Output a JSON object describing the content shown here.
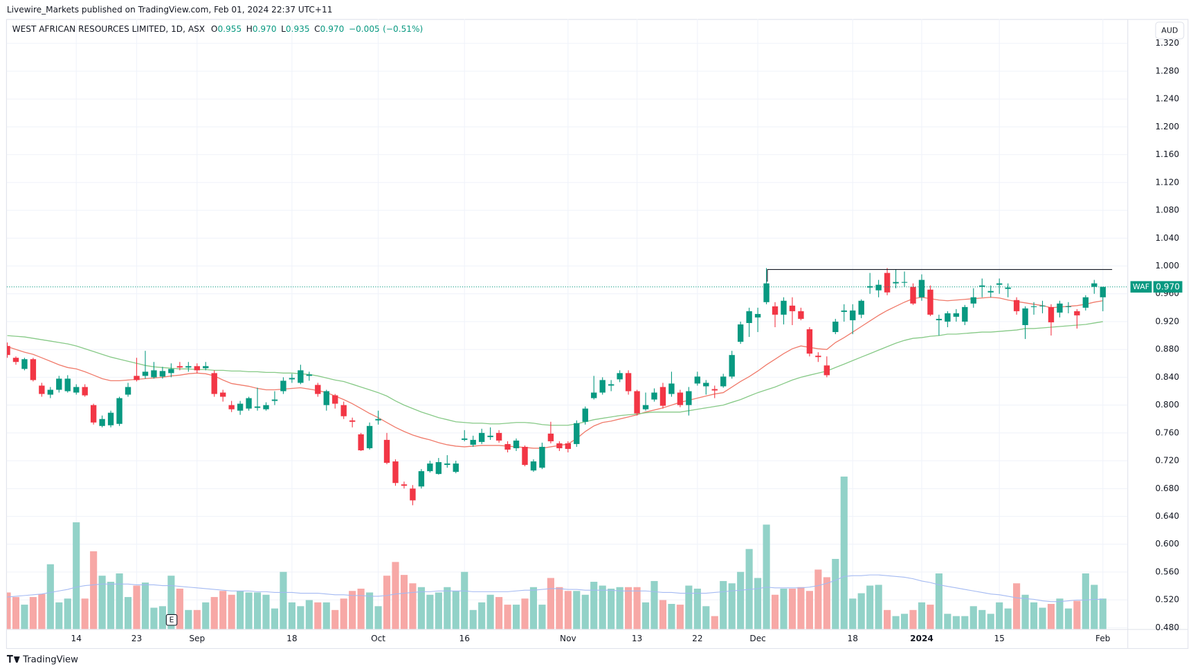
{
  "chart_data": {
    "type": "candlestick",
    "published": "Livewire_Markets published on TradingView.com, Feb 01, 2024 22:37 UTC+11",
    "legend": {
      "symbol": "WEST AFRICAN RESOURCES LIMITED, 1D, ASX",
      "fields": [
        {
          "key": "O",
          "value": "0.955"
        },
        {
          "key": "H",
          "value": "0.970"
        },
        {
          "key": "L",
          "value": "0.935"
        },
        {
          "key": "C",
          "value": "0.970"
        }
      ],
      "change": "−0.005",
      "change_pct": "(−0.51%)"
    },
    "currency": "AUD",
    "ticker": "WAF",
    "last_price": {
      "value": 0.97,
      "label": "0.970"
    },
    "earnings_marker": "E",
    "footer": "TradingView",
    "resistance": 0.995,
    "up_color": "#089981",
    "down_color": "#f23645",
    "volume_up_color": "#92d2c8",
    "volume_down_color": "#f7a8a6",
    "volume_ma_color": "#a3b9f2",
    "categories": [
      null,
      null,
      null,
      null,
      null,
      null,
      null,
      null,
      "14",
      null,
      null,
      null,
      null,
      null,
      null,
      "23",
      null,
      null,
      null,
      null,
      null,
      null,
      "Sep",
      null,
      null,
      null,
      null,
      null,
      null,
      null,
      null,
      null,
      null,
      "18",
      null,
      null,
      null,
      null,
      null,
      null,
      null,
      null,
      null,
      "Oct",
      null,
      null,
      null,
      null,
      null,
      null,
      null,
      null,
      null,
      "16",
      null,
      null,
      null,
      null,
      null,
      null,
      null,
      null,
      null,
      null,
      null,
      "Nov",
      null,
      null,
      null,
      null,
      null,
      null,
      null,
      "13",
      null,
      null,
      null,
      null,
      null,
      null,
      "22",
      null,
      null,
      null,
      null,
      null,
      null,
      "Dec",
      null,
      null,
      null,
      null,
      null,
      null,
      null,
      null,
      null,
      null,
      "18",
      null,
      null,
      null,
      null,
      null,
      null,
      null,
      "2024",
      null,
      null,
      null,
      null,
      null,
      null,
      null,
      null,
      "15",
      null,
      null,
      null,
      null,
      null,
      null,
      null,
      null,
      null,
      null,
      null,
      "Feb"
    ],
    "open": [
      0.885,
      0.868,
      0.852,
      0.866,
      0.828,
      0.815,
      0.822,
      0.82,
      0.818,
      0.826,
      0.8,
      0.77,
      0.771,
      0.773,
      0.815,
      0.842,
      0.842,
      0.84,
      0.841,
      0.846,
      0.856,
      0.854,
      0.856,
      0.853,
      0.846,
      0.818,
      0.8,
      0.792,
      0.795,
      0.796,
      0.794,
      0.806,
      0.82,
      0.837,
      0.832,
      0.842,
      0.829,
      0.8,
      0.814,
      0.8,
      0.778,
      0.758,
      0.738,
      0.778,
      0.75,
      0.719,
      0.686,
      0.68,
      0.683,
      0.705,
      0.701,
      0.714,
      0.704,
      0.75,
      0.743,
      0.747,
      0.754,
      0.76,
      0.744,
      0.738,
      0.74,
      0.706,
      0.71,
      0.759,
      0.745,
      0.745,
      0.744,
      0.776,
      0.81,
      0.818,
      0.828,
      0.837,
      0.846,
      0.82,
      0.794,
      0.808,
      0.826,
      0.816,
      0.818,
      0.8,
      0.831,
      0.827,
      0.823,
      0.827,
      0.841,
      0.891,
      0.918,
      0.926,
      0.948,
      0.942,
      0.93,
      0.943,
      0.935,
      0.909,
      0.871,
      0.857,
      0.905,
      0.934,
      0.922,
      0.93,
      0.969,
      0.965,
      0.99,
      0.975,
      0.976,
      0.97,
      0.955,
      0.966,
      0.922,
      0.92,
      0.927,
      0.92,
      0.946,
      0.97,
      0.962,
      0.973,
      0.967,
      0.951,
      0.915,
      0.941,
      0.942,
      0.941,
      0.933,
      0.941,
      0.935,
      0.94,
      0.97,
      0.955
    ],
    "high": [
      0.89,
      0.87,
      0.868,
      0.868,
      0.832,
      0.826,
      0.842,
      0.843,
      0.83,
      0.83,
      0.802,
      0.785,
      0.792,
      0.812,
      0.832,
      0.868,
      0.878,
      0.862,
      0.855,
      0.86,
      0.862,
      0.862,
      0.86,
      0.862,
      0.85,
      0.822,
      0.806,
      0.806,
      0.812,
      0.825,
      0.804,
      0.82,
      0.84,
      0.845,
      0.858,
      0.848,
      0.832,
      0.822,
      0.816,
      0.805,
      0.782,
      0.76,
      0.775,
      0.792,
      0.76,
      0.722,
      0.69,
      0.685,
      0.708,
      0.72,
      0.724,
      0.728,
      0.72,
      0.764,
      0.756,
      0.766,
      0.768,
      0.764,
      0.748,
      0.752,
      0.742,
      0.722,
      0.746,
      0.776,
      0.748,
      0.748,
      0.778,
      0.798,
      0.842,
      0.84,
      0.836,
      0.85,
      0.85,
      0.822,
      0.818,
      0.824,
      0.832,
      0.848,
      0.822,
      0.826,
      0.848,
      0.836,
      0.828,
      0.845,
      0.878,
      0.92,
      0.94,
      0.94,
      0.997,
      0.948,
      0.955,
      0.955,
      0.94,
      0.912,
      0.876,
      0.87,
      0.924,
      0.945,
      0.945,
      0.952,
      0.99,
      0.98,
      0.997,
      0.995,
      0.992,
      0.975,
      0.988,
      0.972,
      0.93,
      0.935,
      0.938,
      0.944,
      0.968,
      0.982,
      0.972,
      0.982,
      0.975,
      0.955,
      0.942,
      0.948,
      0.95,
      0.945,
      0.95,
      0.948,
      0.938,
      0.958,
      0.98,
      0.97
    ],
    "low": [
      0.868,
      0.858,
      0.85,
      0.834,
      0.812,
      0.81,
      0.818,
      0.818,
      0.815,
      0.812,
      0.772,
      0.768,
      0.768,
      0.77,
      0.812,
      0.834,
      0.838,
      0.838,
      0.838,
      0.84,
      0.85,
      0.848,
      0.846,
      0.85,
      0.812,
      0.805,
      0.79,
      0.786,
      0.792,
      0.792,
      0.792,
      0.8,
      0.816,
      0.832,
      0.83,
      0.835,
      0.812,
      0.792,
      0.795,
      0.78,
      0.768,
      0.734,
      0.736,
      0.772,
      0.715,
      0.684,
      0.68,
      0.656,
      0.68,
      0.703,
      0.7,
      0.71,
      0.702,
      0.748,
      0.74,
      0.744,
      0.75,
      0.746,
      0.732,
      0.734,
      0.712,
      0.704,
      0.708,
      0.745,
      0.734,
      0.732,
      0.74,
      0.772,
      0.808,
      0.815,
      0.82,
      0.833,
      0.815,
      0.785,
      0.792,
      0.805,
      0.795,
      0.812,
      0.797,
      0.785,
      0.828,
      0.815,
      0.81,
      0.825,
      0.838,
      0.888,
      0.898,
      0.905,
      0.945,
      0.912,
      0.916,
      0.915,
      0.922,
      0.87,
      0.862,
      0.84,
      0.902,
      0.92,
      0.902,
      0.925,
      0.96,
      0.955,
      0.958,
      0.968,
      0.97,
      0.944,
      0.95,
      0.928,
      0.9,
      0.912,
      0.92,
      0.915,
      0.94,
      0.955,
      0.955,
      0.96,
      0.955,
      0.93,
      0.895,
      0.93,
      0.932,
      0.9,
      0.926,
      0.932,
      0.91,
      0.936,
      0.96,
      0.935
    ],
    "close": [
      0.872,
      0.862,
      0.866,
      0.836,
      0.816,
      0.822,
      0.838,
      0.838,
      0.826,
      0.814,
      0.775,
      0.78,
      0.789,
      0.81,
      0.826,
      0.836,
      0.848,
      0.85,
      0.849,
      0.852,
      0.854,
      0.856,
      0.85,
      0.856,
      0.816,
      0.812,
      0.794,
      0.802,
      0.81,
      0.798,
      0.8,
      0.808,
      0.835,
      0.839,
      0.85,
      0.844,
      0.816,
      0.82,
      0.802,
      0.784,
      0.776,
      0.735,
      0.77,
      0.78,
      0.717,
      0.688,
      0.684,
      0.663,
      0.705,
      0.716,
      0.718,
      0.716,
      0.716,
      0.752,
      0.75,
      0.76,
      0.756,
      0.749,
      0.736,
      0.749,
      0.714,
      0.719,
      0.74,
      0.748,
      0.738,
      0.737,
      0.774,
      0.795,
      0.818,
      0.836,
      0.83,
      0.846,
      0.82,
      0.788,
      0.8,
      0.818,
      0.799,
      0.831,
      0.8,
      0.82,
      0.841,
      0.832,
      0.821,
      0.841,
      0.872,
      0.916,
      0.935,
      0.931,
      0.975,
      0.93,
      0.95,
      0.935,
      0.924,
      0.874,
      0.869,
      0.843,
      0.92,
      0.936,
      0.936,
      0.95,
      0.971,
      0.973,
      0.962,
      0.977,
      0.977,
      0.946,
      0.98,
      0.93,
      0.924,
      0.932,
      0.932,
      0.941,
      0.955,
      0.972,
      0.964,
      0.975,
      0.969,
      0.935,
      0.939,
      0.942,
      0.943,
      0.919,
      0.946,
      0.942,
      0.929,
      0.955,
      0.975,
      0.97
    ],
    "volume": [
      48,
      42,
      32,
      42,
      46,
      85,
      35,
      40,
      140,
      40,
      102,
      70,
      62,
      73,
      42,
      57,
      61,
      28,
      30,
      70,
      53,
      25,
      25,
      35,
      42,
      50,
      45,
      50,
      48,
      48,
      45,
      27,
      75,
      35,
      30,
      38,
      35,
      35,
      25,
      40,
      50,
      53,
      48,
      30,
      70,
      88,
      71,
      60,
      55,
      45,
      48,
      55,
      50,
      75,
      25,
      35,
      45,
      42,
      32,
      32,
      40,
      55,
      32,
      67,
      55,
      50,
      50,
      45,
      62,
      57,
      53,
      55,
      55,
      55,
      35,
      63,
      38,
      33,
      32,
      57,
      53,
      30,
      17,
      63,
      60,
      75,
      105,
      67,
      137,
      45,
      53,
      53,
      55,
      50,
      78,
      68,
      92,
      200,
      40,
      47,
      57,
      58,
      25,
      17,
      20,
      25,
      35,
      32,
      73,
      20,
      17,
      17,
      30,
      25,
      20,
      35,
      27,
      60,
      45,
      35,
      28,
      33,
      40,
      27,
      37,
      73,
      58,
      40
    ],
    "volume_ma": [
      42,
      43,
      44,
      45,
      46,
      48,
      50,
      52,
      55,
      57,
      58,
      59,
      59,
      59,
      59,
      58,
      58,
      58,
      57,
      57,
      56,
      55,
      54,
      53,
      52,
      51,
      50,
      50,
      50,
      49,
      49,
      48,
      48,
      48,
      47,
      47,
      47,
      46,
      45,
      45,
      44,
      44,
      43,
      43,
      44,
      46,
      47,
      48,
      49,
      49,
      50,
      50,
      50,
      50,
      49,
      49,
      49,
      49,
      49,
      50,
      51,
      51,
      52,
      53,
      53,
      52,
      52,
      51,
      51,
      51,
      51,
      50,
      50,
      50,
      50,
      49,
      48,
      48,
      47,
      47,
      47,
      47,
      48,
      49,
      50,
      51,
      52,
      53,
      55,
      54,
      54,
      54,
      54,
      55,
      57,
      60,
      64,
      69,
      70,
      70,
      71,
      71,
      70,
      69,
      68,
      66,
      63,
      61,
      58,
      56,
      54,
      52,
      50,
      48,
      46,
      45,
      43,
      41,
      40,
      39,
      37,
      36,
      36,
      37,
      38,
      38,
      39,
      39
    ],
    "series": [
      {
        "color": "#f07a6a",
        "values": [
          0.884,
          0.88,
          0.876,
          0.873,
          0.868,
          0.863,
          0.858,
          0.854,
          0.852,
          0.848,
          0.843,
          0.838,
          0.835,
          0.835,
          0.836,
          0.837,
          0.838,
          0.839,
          0.84,
          0.842,
          0.843,
          0.845,
          0.846,
          0.845,
          0.842,
          0.836,
          0.831,
          0.829,
          0.827,
          0.824,
          0.822,
          0.822,
          0.823,
          0.824,
          0.825,
          0.823,
          0.821,
          0.818,
          0.813,
          0.808,
          0.802,
          0.795,
          0.788,
          0.782,
          0.775,
          0.768,
          0.762,
          0.757,
          0.753,
          0.75,
          0.746,
          0.743,
          0.741,
          0.74,
          0.741,
          0.742,
          0.742,
          0.742,
          0.741,
          0.74,
          0.739,
          0.738,
          0.738,
          0.74,
          0.742,
          0.744,
          0.752,
          0.762,
          0.77,
          0.775,
          0.777,
          0.78,
          0.783,
          0.786,
          0.79,
          0.793,
          0.796,
          0.8,
          0.804,
          0.807,
          0.81,
          0.813,
          0.816,
          0.818,
          0.826,
          0.834,
          0.841,
          0.849,
          0.858,
          0.866,
          0.874,
          0.881,
          0.885,
          0.883,
          0.881,
          0.88,
          0.89,
          0.897,
          0.905,
          0.913,
          0.921,
          0.929,
          0.936,
          0.942,
          0.948,
          0.953,
          0.955,
          0.953,
          0.951,
          0.95,
          0.951,
          0.952,
          0.953,
          0.954,
          0.955,
          0.954,
          0.951,
          0.949,
          0.947,
          0.945,
          0.943,
          0.94,
          0.941,
          0.942,
          0.943,
          0.945,
          0.948,
          0.95
        ]
      },
      {
        "color": "#86c986",
        "values": [
          0.9,
          0.899,
          0.898,
          0.896,
          0.894,
          0.892,
          0.89,
          0.888,
          0.885,
          0.881,
          0.877,
          0.873,
          0.869,
          0.866,
          0.863,
          0.86,
          0.857,
          0.855,
          0.854,
          0.853,
          0.852,
          0.852,
          0.851,
          0.851,
          0.85,
          0.85,
          0.849,
          0.849,
          0.848,
          0.848,
          0.847,
          0.847,
          0.846,
          0.846,
          0.845,
          0.844,
          0.842,
          0.839,
          0.836,
          0.834,
          0.83,
          0.826,
          0.822,
          0.818,
          0.813,
          0.806,
          0.8,
          0.795,
          0.79,
          0.786,
          0.782,
          0.779,
          0.776,
          0.775,
          0.774,
          0.774,
          0.773,
          0.773,
          0.774,
          0.775,
          0.775,
          0.774,
          0.772,
          0.771,
          0.771,
          0.771,
          0.773,
          0.776,
          0.779,
          0.781,
          0.783,
          0.785,
          0.786,
          0.787,
          0.789,
          0.79,
          0.79,
          0.79,
          0.79,
          0.792,
          0.794,
          0.796,
          0.798,
          0.8,
          0.804,
          0.808,
          0.813,
          0.818,
          0.822,
          0.826,
          0.831,
          0.836,
          0.84,
          0.843,
          0.846,
          0.849,
          0.854,
          0.859,
          0.864,
          0.869,
          0.874,
          0.879,
          0.884,
          0.889,
          0.893,
          0.896,
          0.897,
          0.899,
          0.9,
          0.902,
          0.902,
          0.903,
          0.904,
          0.905,
          0.905,
          0.906,
          0.907,
          0.908,
          0.91,
          0.91,
          0.911,
          0.912,
          0.913,
          0.914,
          0.915,
          0.916,
          0.918,
          0.92
        ]
      }
    ],
    "ylim": [
      0.478,
      1.355
    ],
    "yticks": [
      {
        "value": 0.48,
        "label": "0.480"
      },
      {
        "value": 0.52,
        "label": "0.520"
      },
      {
        "value": 0.56,
        "label": "0.560"
      },
      {
        "value": 0.6,
        "label": "0.600"
      },
      {
        "value": 0.64,
        "label": "0.640"
      },
      {
        "value": 0.68,
        "label": "0.680"
      },
      {
        "value": 0.72,
        "label": "0.720"
      },
      {
        "value": 0.76,
        "label": "0.760"
      },
      {
        "value": 0.8,
        "label": "0.800"
      },
      {
        "value": 0.84,
        "label": "0.840"
      },
      {
        "value": 0.88,
        "label": "0.880"
      },
      {
        "value": 0.92,
        "label": "0.920"
      },
      {
        "value": 0.96,
        "label": "0.960"
      },
      {
        "value": 1.0,
        "label": "1.000"
      },
      {
        "value": 1.04,
        "label": "1.040"
      },
      {
        "value": 1.08,
        "label": "1.080"
      },
      {
        "value": 1.12,
        "label": "1.120"
      },
      {
        "value": 1.16,
        "label": "1.160"
      },
      {
        "value": 1.2,
        "label": "1.200"
      },
      {
        "value": 1.24,
        "label": "1.240"
      },
      {
        "value": 1.28,
        "label": "1.280"
      },
      {
        "value": 1.32,
        "label": "1.320"
      }
    ],
    "grid": true
  }
}
